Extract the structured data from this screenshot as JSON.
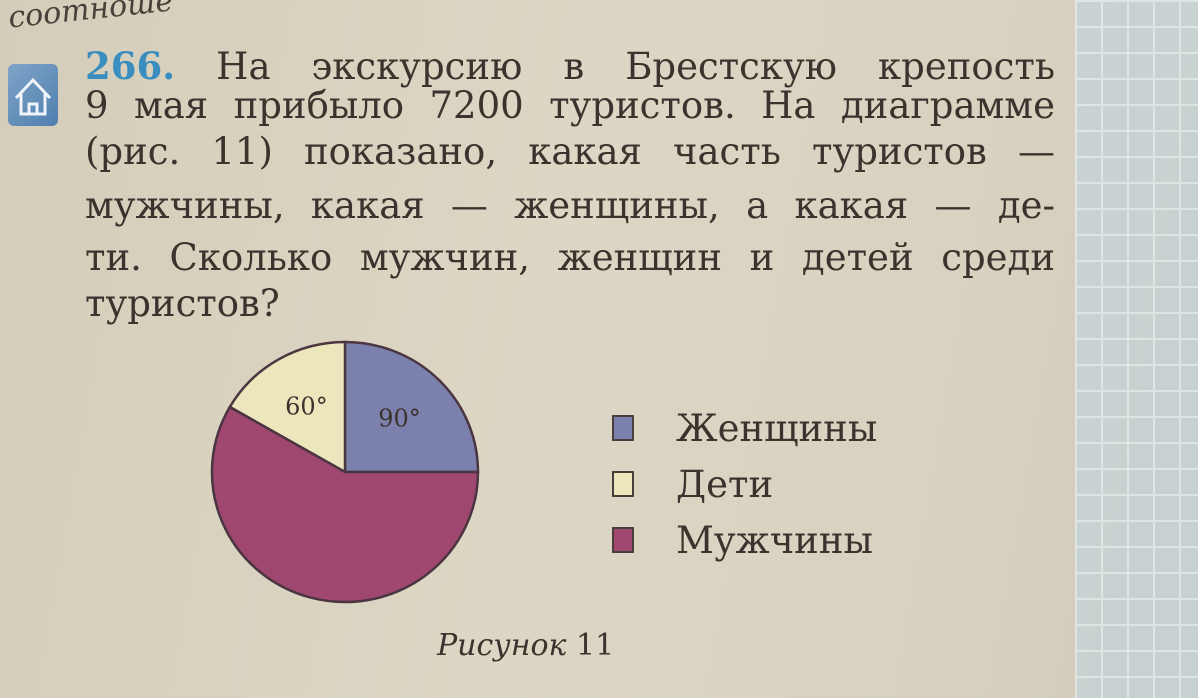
{
  "page": {
    "header_fragment": "соотноше",
    "icon": "home-icon"
  },
  "problem": {
    "number": "266.",
    "lines": [
      "На экскурсию в Брестскую крепость",
      "9 мая прибыло 7200 туристов. На диаграмме",
      "(рис. 11) показано, какая часть туристов —",
      "мужчины, какая — женщины, а какая — де-",
      "ти. Сколько мужчин, женщин и детей среди",
      "туристов?"
    ]
  },
  "figure": {
    "caption_word": "Рисунок",
    "caption_number": "11"
  },
  "chart_data": {
    "type": "pie",
    "unit": "degrees",
    "slices": [
      {
        "name": "Женщины",
        "value": 90,
        "label": "90°",
        "color": "#7b80ad"
      },
      {
        "name": "Дети",
        "value": 60,
        "label": "60°",
        "color": "#ece6bd"
      },
      {
        "name": "Мужчины",
        "value": 210,
        "label": "",
        "color": "#a0476f"
      }
    ],
    "legend": [
      "Женщины",
      "Дети",
      "Мужчины"
    ],
    "legend_position": "right"
  }
}
